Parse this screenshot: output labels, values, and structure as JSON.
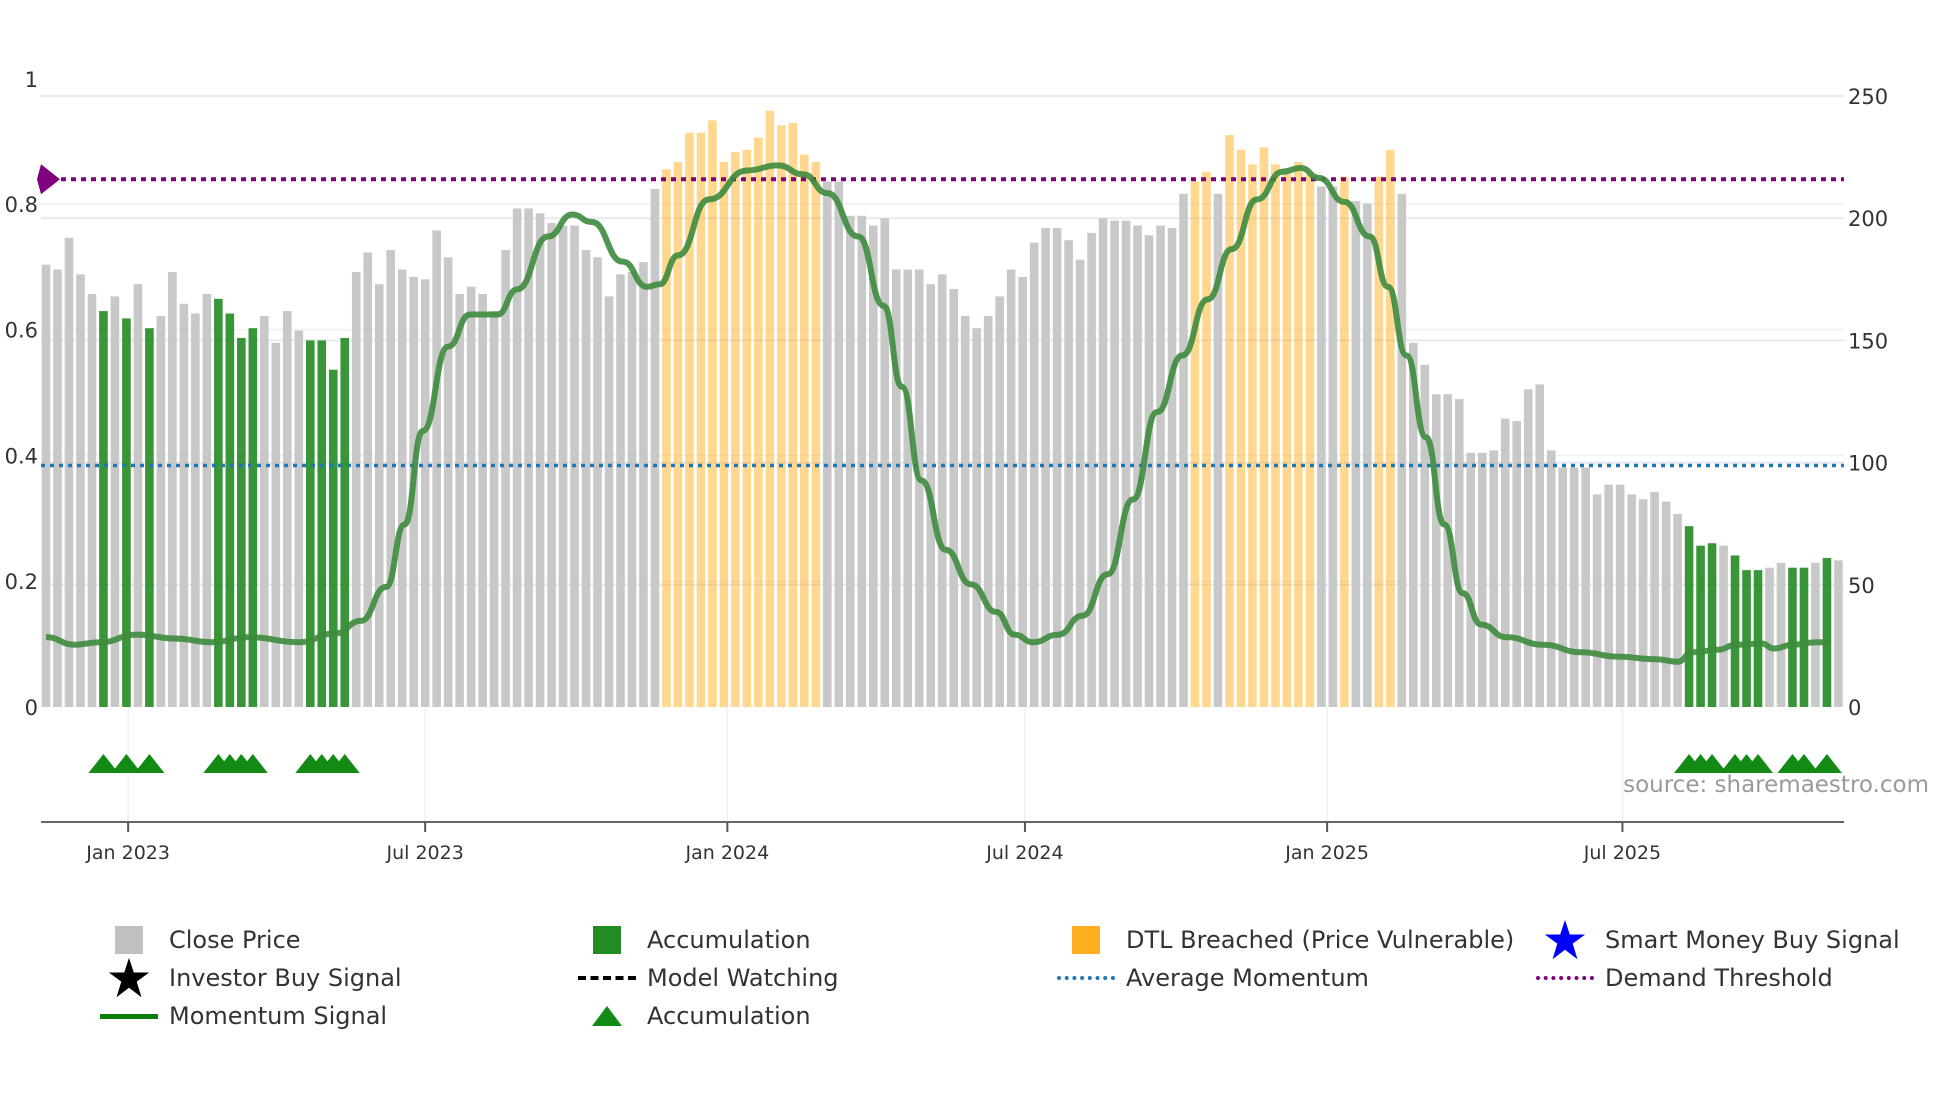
{
  "chart_data": {
    "type": "bar",
    "x_unit": "week index",
    "x_ticks": [
      {
        "label": "Jan 2023",
        "x": 7.15
      },
      {
        "label": "Jul 2023",
        "x": 33.0
      },
      {
        "label": "Jan 2024",
        "x": 59.3
      },
      {
        "label": "Jul 2024",
        "x": 85.2
      },
      {
        "label": "Jan 2025",
        "x": 111.5
      },
      {
        "label": "Jul 2025",
        "x": 137.2
      }
    ],
    "left_axis": {
      "range": [
        0,
        1
      ],
      "ticks": [
        "0",
        "0.2",
        "0.4",
        "0.6",
        "0.8",
        "1"
      ],
      "tick_values": [
        0,
        0.2,
        0.4,
        0.6,
        0.8,
        1
      ]
    },
    "right_axis": {
      "range": [
        0,
        250
      ],
      "ticks": [
        "0",
        "50",
        "100",
        "150",
        "200",
        "250"
      ],
      "tick_values": [
        0,
        50,
        100,
        150,
        200,
        250
      ]
    },
    "close_price": [
      181,
      179,
      192,
      177,
      169,
      162,
      168,
      159,
      173,
      155,
      160,
      178,
      165,
      161,
      169,
      167,
      161,
      151,
      155,
      160,
      149,
      162,
      154,
      150,
      150,
      138,
      151,
      178,
      186,
      173,
      187,
      179,
      176,
      175,
      195,
      184,
      169,
      172,
      169,
      162,
      187,
      204,
      204,
      202,
      198,
      197,
      197,
      187,
      184,
      168,
      177,
      178,
      182,
      212,
      220,
      223,
      235,
      235,
      240,
      223,
      227,
      228,
      233,
      244,
      238,
      239,
      226,
      223,
      215,
      215,
      201,
      201,
      197,
      200,
      179,
      179,
      179,
      173,
      177,
      171,
      160,
      155,
      160,
      168,
      179,
      176,
      190,
      196,
      196,
      191,
      183,
      194,
      200,
      199,
      199,
      197,
      193,
      197,
      196,
      210,
      215,
      219,
      210,
      234,
      228,
      222,
      229,
      222,
      218,
      223,
      218,
      213,
      213,
      217,
      207,
      206,
      217,
      228,
      210,
      149,
      140,
      128,
      128,
      126,
      104,
      104,
      105,
      118,
      117,
      130,
      132,
      105,
      98,
      98,
      98,
      87,
      91,
      91,
      87,
      85,
      88,
      84,
      79,
      74,
      66,
      67,
      66,
      62,
      56,
      56,
      57,
      59,
      57,
      57,
      59,
      61,
      60
    ],
    "accumulation_indices": [
      5,
      7,
      9,
      15,
      16,
      17,
      18,
      23,
      24,
      25,
      26,
      143,
      144,
      145,
      147,
      148,
      149,
      152,
      153,
      155
    ],
    "dtl_breached_indices": [
      54,
      55,
      56,
      57,
      58,
      59,
      60,
      61,
      62,
      63,
      64,
      65,
      66,
      67,
      100,
      101,
      103,
      104,
      105,
      106,
      107,
      108,
      109,
      110,
      113,
      116,
      117
    ],
    "momentum_signal": [
      [
        0,
        0.111
      ],
      [
        2.5,
        0.099
      ],
      [
        4.7,
        0.103
      ],
      [
        7.9,
        0.115
      ],
      [
        11.2,
        0.109
      ],
      [
        14.4,
        0.103
      ],
      [
        17.7,
        0.111
      ],
      [
        22,
        0.103
      ],
      [
        25.2,
        0.117
      ],
      [
        27.4,
        0.137
      ],
      [
        29.6,
        0.191
      ],
      [
        31.2,
        0.29
      ],
      [
        32.8,
        0.439
      ],
      [
        35,
        0.573
      ],
      [
        36.9,
        0.624
      ],
      [
        39.3,
        0.624
      ],
      [
        41,
        0.664
      ],
      [
        43.7,
        0.748
      ],
      [
        45.8,
        0.783
      ],
      [
        47.5,
        0.771
      ],
      [
        50.2,
        0.708
      ],
      [
        52.3,
        0.668
      ],
      [
        53.4,
        0.672
      ],
      [
        55,
        0.718
      ],
      [
        57.7,
        0.807
      ],
      [
        61,
        0.853
      ],
      [
        63.7,
        0.861
      ],
      [
        65.9,
        0.847
      ],
      [
        68,
        0.817
      ],
      [
        70.7,
        0.748
      ],
      [
        72.9,
        0.638
      ],
      [
        74.5,
        0.509
      ],
      [
        76.2,
        0.36
      ],
      [
        78.3,
        0.25
      ],
      [
        80.5,
        0.195
      ],
      [
        82.7,
        0.151
      ],
      [
        84.3,
        0.115
      ],
      [
        85.9,
        0.103
      ],
      [
        88.1,
        0.115
      ],
      [
        90.2,
        0.145
      ],
      [
        92.4,
        0.211
      ],
      [
        94.6,
        0.33
      ],
      [
        96.7,
        0.469
      ],
      [
        98.9,
        0.559
      ],
      [
        101.1,
        0.648
      ],
      [
        103.2,
        0.728
      ],
      [
        105.4,
        0.807
      ],
      [
        107.6,
        0.851
      ],
      [
        109.2,
        0.857
      ],
      [
        110.8,
        0.841
      ],
      [
        113,
        0.803
      ],
      [
        115.2,
        0.748
      ],
      [
        116.8,
        0.668
      ],
      [
        118.4,
        0.559
      ],
      [
        120.1,
        0.429
      ],
      [
        121.7,
        0.29
      ],
      [
        123.3,
        0.181
      ],
      [
        124.9,
        0.131
      ],
      [
        127.1,
        0.111
      ],
      [
        130.3,
        0.099
      ],
      [
        133.6,
        0.087
      ],
      [
        136.8,
        0.08
      ],
      [
        140.1,
        0.076
      ],
      [
        142,
        0.072
      ],
      [
        143.3,
        0.087
      ],
      [
        145.5,
        0.091
      ],
      [
        147.1,
        0.099
      ],
      [
        149.3,
        0.101
      ],
      [
        150.4,
        0.093
      ],
      [
        152,
        0.099
      ],
      [
        154.1,
        0.103
      ],
      [
        155.3,
        0.103
      ]
    ],
    "average_momentum": 0.384,
    "demand_threshold": 0.839,
    "grid": true,
    "legend_placement": "bottom",
    "annotation": "source: sharemaestro.com"
  },
  "colors": {
    "close_price": "#c8c8c8",
    "accumulation": "#228b22",
    "dtl_breached": "#ffb020",
    "smart_money": "#0000ff",
    "investor": "#000000",
    "momentum": "#2e7d32",
    "average_momentum": "#1f77b4",
    "demand_threshold": "#800080"
  },
  "legend": {
    "close_price": "Close Price",
    "accumulation_bar": "Accumulation",
    "dtl_breached": "DTL Breached (Price Vulnerable)",
    "smart_money": "Smart Money Buy Signal",
    "investor": "Investor Buy Signal",
    "model_watching": "Model Watching",
    "average_momentum": "Average Momentum",
    "demand_threshold": "Demand Threshold",
    "momentum_signal": "Momentum Signal",
    "accumulation_marker": "Accumulation"
  }
}
